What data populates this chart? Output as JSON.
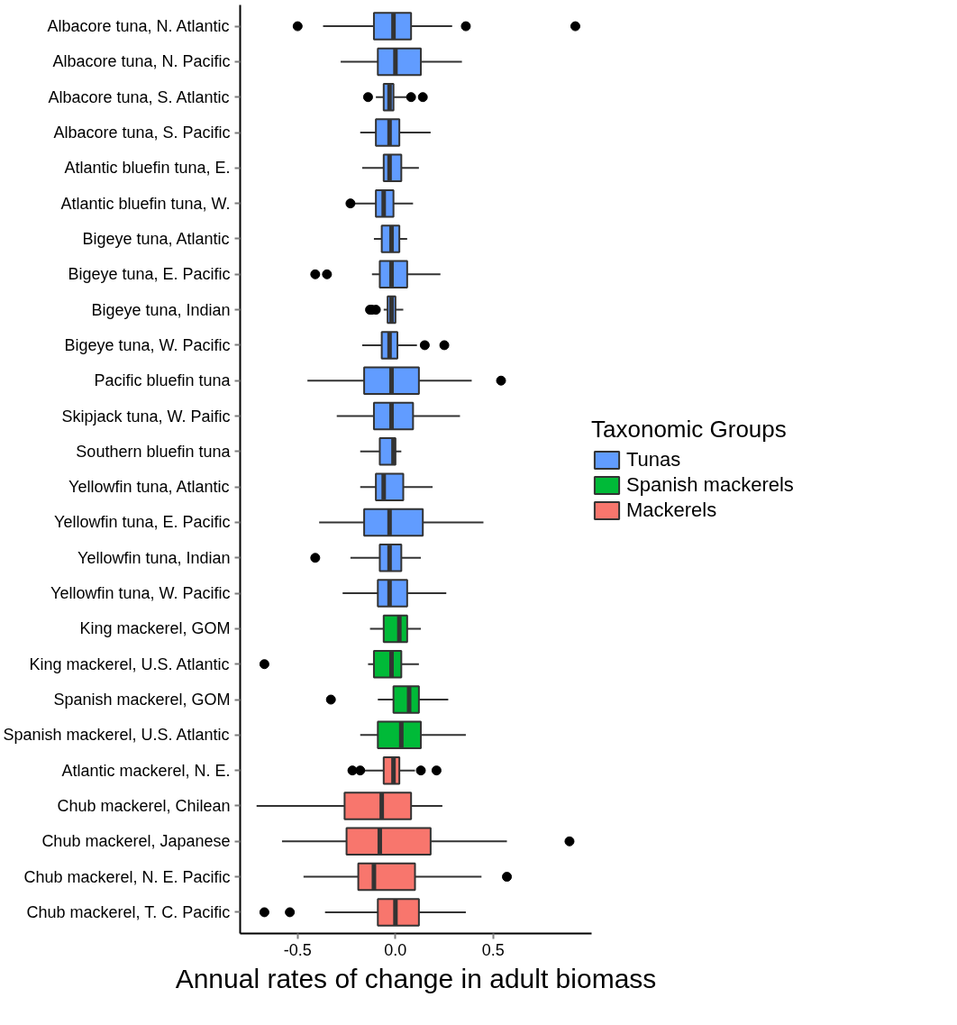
{
  "chart_data": {
    "type": "box",
    "orientation": "horizontal",
    "xlabel": "Annual rates of change in adult biomass",
    "legend_title": "Taxonomic Groups",
    "legend": "right",
    "grid": false,
    "xlim": [
      -0.794,
      1.003
    ],
    "xticks": [
      {
        "value": -0.5,
        "label": "-0.5"
      },
      {
        "value": 0,
        "label": "0.0"
      },
      {
        "value": 0.5,
        "label": "0.5"
      }
    ],
    "categories": [
      "Albacore tuna, N. Atlantic",
      "Albacore tuna, N. Pacific",
      "Albacore tuna, S. Atlantic",
      "Albacore tuna, S. Pacific",
      "Atlantic bluefin tuna, E.",
      "Atlantic bluefin tuna, W.",
      "Bigeye tuna, Atlantic",
      "Bigeye tuna, E. Pacific",
      "Bigeye tuna, Indian",
      "Bigeye tuna, W. Pacific",
      "Pacific bluefin tuna",
      "Skipjack tuna, W. Paific",
      "Southern bluefin tuna",
      "Yellowfin tuna, Atlantic",
      "Yellowfin tuna, E. Pacific",
      "Yellowfin tuna, Indian",
      "Yellowfin tuna, W. Pacific",
      "King mackerel, GOM",
      "King mackerel, U.S. Atlantic",
      "Spanish mackerel, GOM",
      "Spanish mackerel, U.S. Atlantic",
      "Atlantic mackerel, N. E.",
      "Chub mackerel, Chilean",
      "Chub mackerel, Japanese",
      "Chub mackerel, N. E. Pacific",
      "Chub mackerel, T. C. Pacific"
    ],
    "series": [
      {
        "name": "Tunas",
        "color": "#619cff",
        "boxes": [
          {
            "low": -0.37,
            "q1": -0.11,
            "median": -0.01,
            "q3": 0.08,
            "high": 0.29,
            "outliers": [
              -0.5,
              0.36,
              0.92
            ]
          },
          {
            "low": -0.28,
            "q1": -0.09,
            "median": 0.0,
            "q3": 0.13,
            "high": 0.34
          },
          {
            "low": -0.1,
            "q1": -0.06,
            "median": -0.03,
            "q3": -0.01,
            "high": 0.06,
            "outliers": [
              -0.14,
              0.08,
              0.14
            ]
          },
          {
            "low": -0.18,
            "q1": -0.1,
            "median": -0.03,
            "q3": 0.02,
            "high": 0.18
          },
          {
            "low": -0.17,
            "q1": -0.06,
            "median": -0.03,
            "q3": 0.03,
            "high": 0.12
          },
          {
            "low": -0.22,
            "q1": -0.1,
            "median": -0.06,
            "q3": -0.01,
            "high": 0.09,
            "outliers": [
              -0.23
            ]
          },
          {
            "low": -0.11,
            "q1": -0.07,
            "median": -0.02,
            "q3": 0.02,
            "high": 0.06
          },
          {
            "low": -0.12,
            "q1": -0.08,
            "median": -0.02,
            "q3": 0.06,
            "high": 0.23,
            "outliers": [
              -0.41,
              -0.35
            ]
          },
          {
            "low": -0.06,
            "q1": -0.04,
            "median": -0.02,
            "q3": 0.0,
            "high": 0.04,
            "outliers": [
              -0.13,
              -0.12,
              -0.1
            ]
          },
          {
            "low": -0.17,
            "q1": -0.07,
            "median": -0.03,
            "q3": 0.01,
            "high": 0.11,
            "outliers": [
              0.15,
              0.25
            ]
          },
          {
            "low": -0.45,
            "q1": -0.16,
            "median": -0.02,
            "q3": 0.12,
            "high": 0.39,
            "outliers": [
              0.54
            ]
          },
          {
            "low": -0.3,
            "q1": -0.11,
            "median": -0.02,
            "q3": 0.09,
            "high": 0.33
          },
          {
            "low": -0.18,
            "q1": -0.08,
            "median": -0.01,
            "q3": 0.0,
            "high": 0.03
          },
          {
            "low": -0.18,
            "q1": -0.1,
            "median": -0.06,
            "q3": 0.04,
            "high": 0.19
          },
          {
            "low": -0.39,
            "q1": -0.16,
            "median": -0.03,
            "q3": 0.14,
            "high": 0.45
          },
          {
            "low": -0.23,
            "q1": -0.08,
            "median": -0.03,
            "q3": 0.03,
            "high": 0.13,
            "outliers": [
              -0.41
            ]
          },
          {
            "low": -0.27,
            "q1": -0.09,
            "median": -0.03,
            "q3": 0.06,
            "high": 0.26
          },
          null,
          null,
          null,
          null,
          null,
          null,
          null,
          null,
          null
        ]
      },
      {
        "name": "Spanish mackerels",
        "color": "#00ba38",
        "boxes": [
          null,
          null,
          null,
          null,
          null,
          null,
          null,
          null,
          null,
          null,
          null,
          null,
          null,
          null,
          null,
          null,
          null,
          {
            "low": -0.13,
            "q1": -0.06,
            "median": 0.02,
            "q3": 0.06,
            "high": 0.13
          },
          {
            "low": -0.14,
            "q1": -0.11,
            "median": -0.02,
            "q3": 0.03,
            "high": 0.12,
            "outliers": [
              -0.67
            ]
          },
          {
            "low": -0.09,
            "q1": -0.01,
            "median": 0.07,
            "q3": 0.12,
            "high": 0.27,
            "outliers": [
              -0.33
            ]
          },
          {
            "low": -0.18,
            "q1": -0.09,
            "median": 0.03,
            "q3": 0.13,
            "high": 0.36
          },
          null,
          null,
          null,
          null,
          null
        ]
      },
      {
        "name": "Mackerels",
        "color": "#f8766d",
        "boxes": [
          null,
          null,
          null,
          null,
          null,
          null,
          null,
          null,
          null,
          null,
          null,
          null,
          null,
          null,
          null,
          null,
          null,
          null,
          null,
          null,
          null,
          {
            "low": -0.16,
            "q1": -0.06,
            "median": -0.01,
            "q3": 0.02,
            "high": 0.1,
            "outliers": [
              -0.22,
              -0.18,
              0.13,
              0.21
            ]
          },
          {
            "low": -0.71,
            "q1": -0.26,
            "median": -0.07,
            "q3": 0.08,
            "high": 0.24
          },
          {
            "low": -0.58,
            "q1": -0.25,
            "median": -0.08,
            "q3": 0.18,
            "high": 0.57,
            "outliers": [
              0.89
            ]
          },
          {
            "low": -0.47,
            "q1": -0.19,
            "median": -0.11,
            "q3": 0.1,
            "high": 0.44,
            "outliers": [
              0.57
            ]
          },
          {
            "low": -0.36,
            "q1": -0.09,
            "median": 0.0,
            "q3": 0.12,
            "high": 0.36,
            "outliers": [
              -0.67,
              -0.54
            ]
          }
        ]
      }
    ]
  }
}
